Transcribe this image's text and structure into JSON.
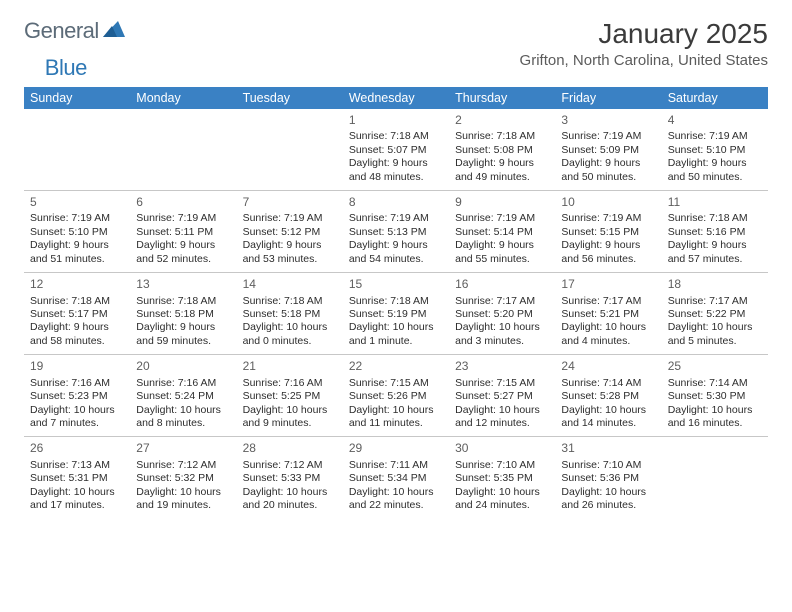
{
  "logo": {
    "text1": "General",
    "text2": "Blue"
  },
  "title": "January 2025",
  "location": "Grifton, North Carolina, United States",
  "colors": {
    "header_bg": "#3a81c4",
    "header_text": "#ffffff",
    "logo_gray": "#5c6b78",
    "logo_blue": "#2f78b5",
    "border": "#c7c7c7"
  },
  "day_names": [
    "Sunday",
    "Monday",
    "Tuesday",
    "Wednesday",
    "Thursday",
    "Friday",
    "Saturday"
  ],
  "weeks": [
    [
      null,
      null,
      null,
      {
        "n": "1",
        "sr": "7:18 AM",
        "ss": "5:07 PM",
        "d1": "9 hours",
        "d2": "and 48 minutes."
      },
      {
        "n": "2",
        "sr": "7:18 AM",
        "ss": "5:08 PM",
        "d1": "9 hours",
        "d2": "and 49 minutes."
      },
      {
        "n": "3",
        "sr": "7:19 AM",
        "ss": "5:09 PM",
        "d1": "9 hours",
        "d2": "and 50 minutes."
      },
      {
        "n": "4",
        "sr": "7:19 AM",
        "ss": "5:10 PM",
        "d1": "9 hours",
        "d2": "and 50 minutes."
      }
    ],
    [
      {
        "n": "5",
        "sr": "7:19 AM",
        "ss": "5:10 PM",
        "d1": "9 hours",
        "d2": "and 51 minutes."
      },
      {
        "n": "6",
        "sr": "7:19 AM",
        "ss": "5:11 PM",
        "d1": "9 hours",
        "d2": "and 52 minutes."
      },
      {
        "n": "7",
        "sr": "7:19 AM",
        "ss": "5:12 PM",
        "d1": "9 hours",
        "d2": "and 53 minutes."
      },
      {
        "n": "8",
        "sr": "7:19 AM",
        "ss": "5:13 PM",
        "d1": "9 hours",
        "d2": "and 54 minutes."
      },
      {
        "n": "9",
        "sr": "7:19 AM",
        "ss": "5:14 PM",
        "d1": "9 hours",
        "d2": "and 55 minutes."
      },
      {
        "n": "10",
        "sr": "7:19 AM",
        "ss": "5:15 PM",
        "d1": "9 hours",
        "d2": "and 56 minutes."
      },
      {
        "n": "11",
        "sr": "7:18 AM",
        "ss": "5:16 PM",
        "d1": "9 hours",
        "d2": "and 57 minutes."
      }
    ],
    [
      {
        "n": "12",
        "sr": "7:18 AM",
        "ss": "5:17 PM",
        "d1": "9 hours",
        "d2": "and 58 minutes."
      },
      {
        "n": "13",
        "sr": "7:18 AM",
        "ss": "5:18 PM",
        "d1": "9 hours",
        "d2": "and 59 minutes."
      },
      {
        "n": "14",
        "sr": "7:18 AM",
        "ss": "5:18 PM",
        "d1": "10 hours",
        "d2": "and 0 minutes."
      },
      {
        "n": "15",
        "sr": "7:18 AM",
        "ss": "5:19 PM",
        "d1": "10 hours",
        "d2": "and 1 minute."
      },
      {
        "n": "16",
        "sr": "7:17 AM",
        "ss": "5:20 PM",
        "d1": "10 hours",
        "d2": "and 3 minutes."
      },
      {
        "n": "17",
        "sr": "7:17 AM",
        "ss": "5:21 PM",
        "d1": "10 hours",
        "d2": "and 4 minutes."
      },
      {
        "n": "18",
        "sr": "7:17 AM",
        "ss": "5:22 PM",
        "d1": "10 hours",
        "d2": "and 5 minutes."
      }
    ],
    [
      {
        "n": "19",
        "sr": "7:16 AM",
        "ss": "5:23 PM",
        "d1": "10 hours",
        "d2": "and 7 minutes."
      },
      {
        "n": "20",
        "sr": "7:16 AM",
        "ss": "5:24 PM",
        "d1": "10 hours",
        "d2": "and 8 minutes."
      },
      {
        "n": "21",
        "sr": "7:16 AM",
        "ss": "5:25 PM",
        "d1": "10 hours",
        "d2": "and 9 minutes."
      },
      {
        "n": "22",
        "sr": "7:15 AM",
        "ss": "5:26 PM",
        "d1": "10 hours",
        "d2": "and 11 minutes."
      },
      {
        "n": "23",
        "sr": "7:15 AM",
        "ss": "5:27 PM",
        "d1": "10 hours",
        "d2": "and 12 minutes."
      },
      {
        "n": "24",
        "sr": "7:14 AM",
        "ss": "5:28 PM",
        "d1": "10 hours",
        "d2": "and 14 minutes."
      },
      {
        "n": "25",
        "sr": "7:14 AM",
        "ss": "5:30 PM",
        "d1": "10 hours",
        "d2": "and 16 minutes."
      }
    ],
    [
      {
        "n": "26",
        "sr": "7:13 AM",
        "ss": "5:31 PM",
        "d1": "10 hours",
        "d2": "and 17 minutes."
      },
      {
        "n": "27",
        "sr": "7:12 AM",
        "ss": "5:32 PM",
        "d1": "10 hours",
        "d2": "and 19 minutes."
      },
      {
        "n": "28",
        "sr": "7:12 AM",
        "ss": "5:33 PM",
        "d1": "10 hours",
        "d2": "and 20 minutes."
      },
      {
        "n": "29",
        "sr": "7:11 AM",
        "ss": "5:34 PM",
        "d1": "10 hours",
        "d2": "and 22 minutes."
      },
      {
        "n": "30",
        "sr": "7:10 AM",
        "ss": "5:35 PM",
        "d1": "10 hours",
        "d2": "and 24 minutes."
      },
      {
        "n": "31",
        "sr": "7:10 AM",
        "ss": "5:36 PM",
        "d1": "10 hours",
        "d2": "and 26 minutes."
      },
      null
    ]
  ],
  "labels": {
    "sunrise": "Sunrise:",
    "sunset": "Sunset:",
    "daylight": "Daylight:"
  }
}
